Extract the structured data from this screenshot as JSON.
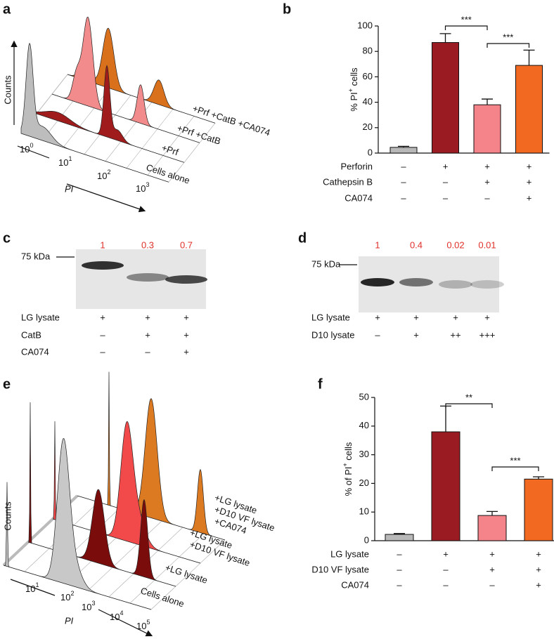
{
  "panel_a": {
    "label": "a",
    "y_axis": "Counts",
    "x_axis": "PI",
    "ticks": [
      {
        "base": "10",
        "exp": "0"
      },
      {
        "base": "10",
        "exp": "1"
      },
      {
        "base": "10",
        "exp": "2"
      },
      {
        "base": "10",
        "exp": "3"
      }
    ],
    "samples": [
      "Cells alone",
      "+Prf",
      "+Prf +CatB",
      "+Prf +CatB +CA074"
    ]
  },
  "chart_data": [
    {
      "type": "bar",
      "label": "b",
      "ylabel": [
        "% PI",
        "+",
        " cells"
      ],
      "values": [
        4.5,
        87,
        38,
        69
      ],
      "errors": [
        0.8,
        7,
        4.5,
        12
      ],
      "colors": [
        "#b8b8b8",
        "#9b1b22",
        "#f4848a",
        "#f26a22"
      ],
      "ylim": [
        0,
        100
      ],
      "yticks": [
        0,
        20,
        40,
        60,
        80,
        100
      ],
      "annotations": [
        "***",
        "***"
      ],
      "conditions": [
        {
          "name": "Perforin",
          "levels": [
            "–",
            "+",
            "+",
            "+"
          ]
        },
        {
          "name": "Cathepsin B",
          "levels": [
            "–",
            "–",
            "+",
            "+"
          ]
        },
        {
          "name": "CA074",
          "levels": [
            "–",
            "–",
            "–",
            "+"
          ]
        }
      ]
    },
    {
      "type": "bar",
      "label": "f",
      "ylabel": [
        "% of PI",
        "+",
        " cells"
      ],
      "values": [
        2.2,
        38,
        8.8,
        21.5
      ],
      "errors": [
        0.3,
        9,
        1.4,
        0.8
      ],
      "colors": [
        "#b8b8b8",
        "#9b1b22",
        "#f4848a",
        "#f26a22"
      ],
      "ylim": [
        0,
        50
      ],
      "yticks": [
        0,
        10,
        20,
        30,
        40,
        50
      ],
      "annotations": [
        "**",
        "***"
      ],
      "conditions": [
        {
          "name": "LG lysate",
          "levels": [
            "–",
            "+",
            "+",
            "+"
          ]
        },
        {
          "name": "D10 VF lysate",
          "levels": [
            "–",
            "–",
            "+",
            "+"
          ]
        },
        {
          "name": "CA074",
          "levels": [
            "–",
            "–",
            "–",
            "+"
          ]
        }
      ]
    }
  ],
  "panel_c": {
    "label": "c",
    "marker": "75 kDa",
    "band_ratios": [
      1,
      0.3,
      0.7
    ],
    "conditions": [
      {
        "name": "LG lysate",
        "lanes": [
          "+",
          "+",
          "+"
        ]
      },
      {
        "name": "CatB",
        "lanes": [
          "–",
          "+",
          "+"
        ]
      },
      {
        "name": "CA074",
        "lanes": [
          "–",
          "–",
          "+"
        ]
      }
    ]
  },
  "panel_d": {
    "label": "d",
    "marker": "75 kDa",
    "band_ratios": [
      1,
      0.4,
      0.02,
      0.01
    ],
    "conditions": [
      {
        "name": "LG lysate",
        "lanes": [
          "+",
          "+",
          "+",
          "+"
        ]
      },
      {
        "name": "D10 lysate",
        "lanes": [
          "–",
          "+",
          "++",
          "+++"
        ]
      }
    ]
  },
  "panel_e": {
    "label": "e",
    "y_axis": "Counts",
    "x_axis": "PI",
    "ticks": [
      {
        "base": "10",
        "exp": "1"
      },
      {
        "base": "10",
        "exp": "2"
      },
      {
        "base": "10",
        "exp": "3"
      },
      {
        "base": "10",
        "exp": "4"
      },
      {
        "base": "10",
        "exp": "5"
      }
    ],
    "samples": [
      [
        "Cells alone"
      ],
      [
        "+LG lysate"
      ],
      [
        "+LG lysate",
        "+D10 VF lysate"
      ],
      [
        "+LG lysate",
        "+D10 VF lysate",
        "+CA074"
      ]
    ]
  }
}
